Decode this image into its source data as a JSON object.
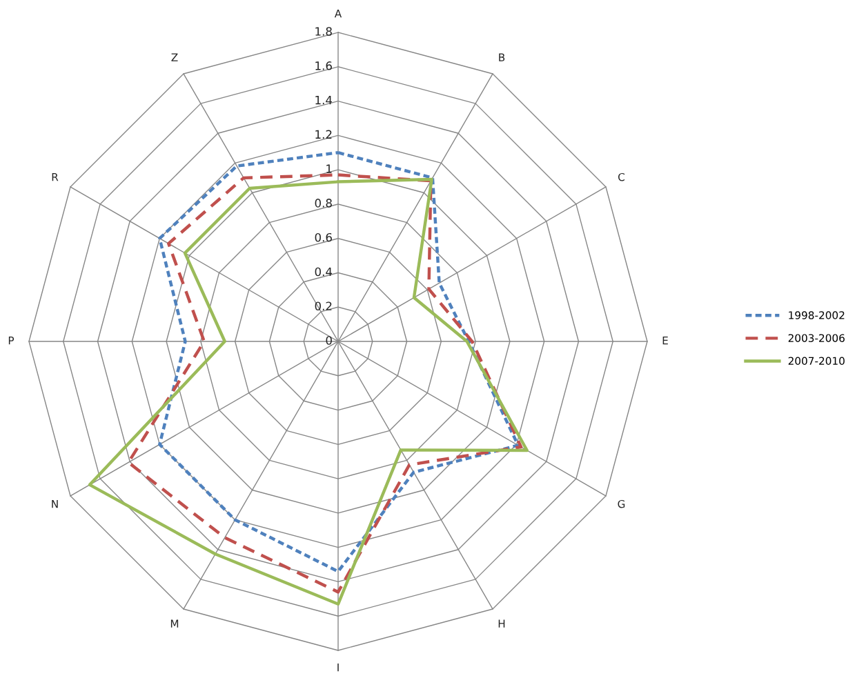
{
  "chart_data": {
    "type": "radar",
    "categories": [
      "A",
      "B",
      "C",
      "E",
      "G",
      "H",
      "I",
      "M",
      "N",
      "P",
      "R",
      "Z"
    ],
    "ylim": [
      0,
      1.8
    ],
    "yticks": [
      0,
      0.2,
      0.4,
      0.6,
      0.8,
      1,
      1.2,
      1.4,
      1.6,
      1.8
    ],
    "grid": true,
    "legend": "right",
    "series": [
      {
        "name": "1998-2002",
        "color": "#4f81bd",
        "line_style": "dotted",
        "values": [
          1.1,
          1.1,
          0.68,
          0.76,
          1.21,
          0.88,
          1.34,
          1.2,
          1.2,
          0.89,
          1.2,
          1.18
        ]
      },
      {
        "name": "2003-2006",
        "color": "#c0504d",
        "line_style": "dashed",
        "values": [
          0.97,
          1.08,
          0.61,
          0.78,
          1.23,
          0.83,
          1.46,
          1.32,
          1.41,
          0.78,
          1.14,
          1.1
        ]
      },
      {
        "name": "2007-2010",
        "color": "#9bbb59",
        "line_style": "solid",
        "values": [
          0.93,
          1.09,
          0.51,
          0.75,
          1.27,
          0.73,
          1.53,
          1.43,
          1.67,
          0.66,
          1.03,
          1.03
        ]
      }
    ]
  }
}
